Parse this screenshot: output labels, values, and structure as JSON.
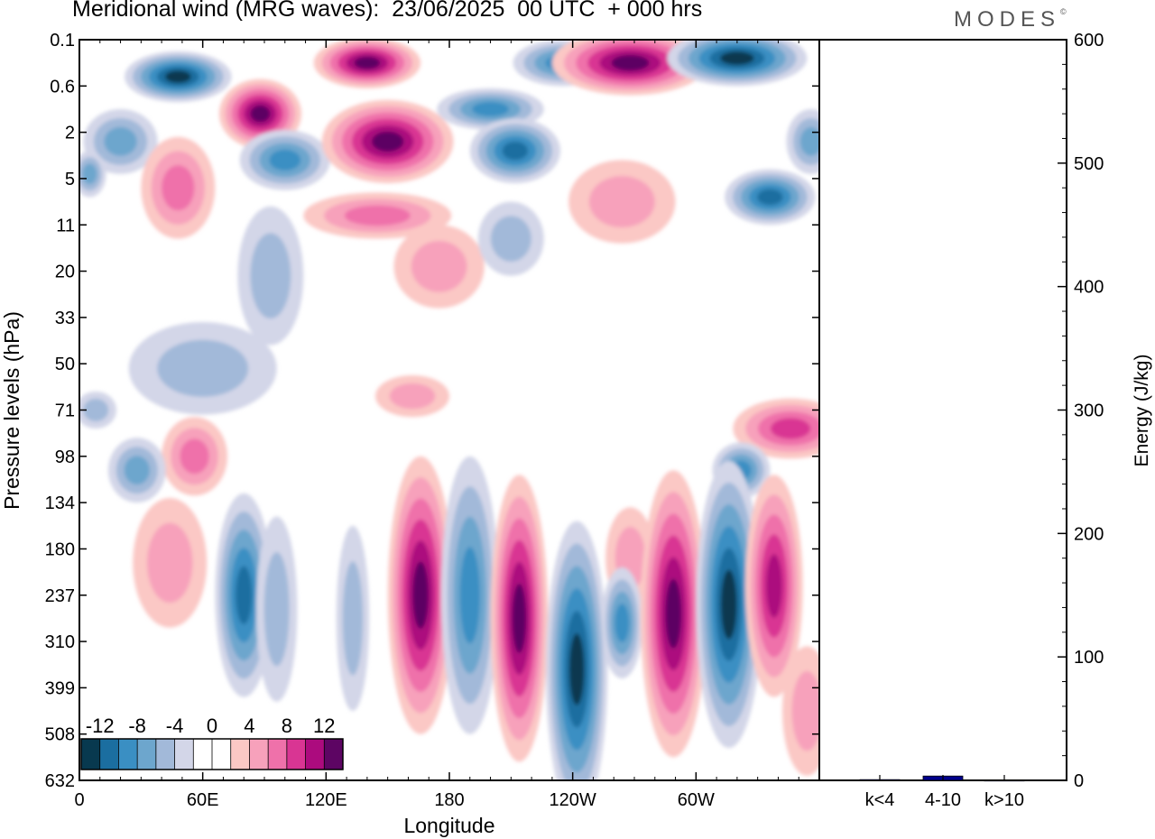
{
  "chart_data": [
    {
      "type": "heatmap",
      "title": "Meridional wind (MRG waves):  23/06/2025  00 UTC  + 000 hrs",
      "xlabel": "Longitude",
      "ylabel": "Pressure levels (hPa)",
      "x_ticks": [
        "0",
        "60E",
        "120E",
        "180",
        "120W",
        "60W"
      ],
      "x_range": [
        0,
        360
      ],
      "y_ticks": [
        "0.1",
        "0.6",
        "2",
        "5",
        "11",
        "20",
        "33",
        "50",
        "71",
        "98",
        "134",
        "180",
        "237",
        "310",
        "399",
        "508",
        "632"
      ],
      "colorbar": {
        "labels": [
          "-12",
          "-8",
          "-4",
          "0",
          "4",
          "8",
          "12"
        ],
        "colors": [
          "#08394f",
          "#1b6ea0",
          "#3a8fc3",
          "#6da6cd",
          "#a2b9d9",
          "#d3d6e8",
          "#ffffff",
          "#ffffff",
          "#fbc8c5",
          "#f7a1bb",
          "#ef71aa",
          "#d93593",
          "#ac0b7e",
          "#5d0563"
        ]
      },
      "anomalies": [
        {
          "lon": 48,
          "lev": 0.8,
          "v": -12,
          "rx": 26,
          "ry": 0.55
        },
        {
          "lon": 20,
          "lev": 2.2,
          "v": -5,
          "rx": 18,
          "ry": 0.7
        },
        {
          "lon": 5,
          "lev": 2.9,
          "v": -5,
          "rx": 8,
          "ry": 0.5
        },
        {
          "lon": 88,
          "lev": 1.6,
          "v": 12,
          "rx": 20,
          "ry": 0.75
        },
        {
          "lon": 48,
          "lev": 3.2,
          "v": 5,
          "rx": 18,
          "ry": 1.1
        },
        {
          "lon": 100,
          "lev": 2.6,
          "v": -8,
          "rx": 22,
          "ry": 0.65
        },
        {
          "lon": 140,
          "lev": 0.5,
          "v": 12,
          "rx": 26,
          "ry": 0.55
        },
        {
          "lon": 150,
          "lev": 2.2,
          "v": 14,
          "rx": 32,
          "ry": 0.9
        },
        {
          "lon": 200,
          "lev": 1.5,
          "v": -8,
          "rx": 26,
          "ry": 0.45
        },
        {
          "lon": 212,
          "lev": 2.4,
          "v": -10,
          "rx": 22,
          "ry": 0.7
        },
        {
          "lon": 235,
          "lev": 0.5,
          "v": -8,
          "rx": 24,
          "ry": 0.5
        },
        {
          "lon": 268,
          "lev": 0.5,
          "v": 16,
          "rx": 38,
          "ry": 0.7
        },
        {
          "lon": 320,
          "lev": 0.4,
          "v": -12,
          "rx": 34,
          "ry": 0.6
        },
        {
          "lon": 356,
          "lev": 2.2,
          "v": -6,
          "rx": 12,
          "ry": 0.7
        },
        {
          "lon": 336,
          "lev": 3.4,
          "v": -10,
          "rx": 22,
          "ry": 0.6
        },
        {
          "lon": 264,
          "lev": 3.5,
          "v": 4,
          "rx": 26,
          "ry": 0.9
        },
        {
          "lon": 145,
          "lev": 3.8,
          "v": 5,
          "rx": 36,
          "ry": 0.5
        },
        {
          "lon": 175,
          "lev": 4.9,
          "v": 3,
          "rx": 22,
          "ry": 0.9
        },
        {
          "lon": 210,
          "lev": 4.3,
          "v": -3,
          "rx": 16,
          "ry": 0.8
        },
        {
          "lon": 93,
          "lev": 5.1,
          "v": -3,
          "rx": 16,
          "ry": 1.5
        },
        {
          "lon": 60,
          "lev": 7.1,
          "v": -3,
          "rx": 36,
          "ry": 1.0
        },
        {
          "lon": 162,
          "lev": 7.7,
          "v": 3,
          "rx": 18,
          "ry": 0.45
        },
        {
          "lon": 346,
          "lev": 8.4,
          "v": 8,
          "rx": 28,
          "ry": 0.65
        },
        {
          "lon": 322,
          "lev": 9.3,
          "v": -8,
          "rx": 14,
          "ry": 0.6
        },
        {
          "lon": 56,
          "lev": 9.0,
          "v": 5,
          "rx": 16,
          "ry": 0.85
        },
        {
          "lon": 28,
          "lev": 9.3,
          "v": -5,
          "rx": 14,
          "ry": 0.7
        },
        {
          "lon": 8,
          "lev": 8.0,
          "v": -3,
          "rx": 10,
          "ry": 0.4
        },
        {
          "lon": 44,
          "lev": 11.3,
          "v": 4,
          "rx": 18,
          "ry": 1.4
        },
        {
          "lon": 80,
          "lev": 12.0,
          "v": -10,
          "rx": 14,
          "ry": 2.2
        },
        {
          "lon": 96,
          "lev": 12.3,
          "v": -4,
          "rx": 10,
          "ry": 2.0
        },
        {
          "lon": 133,
          "lev": 12.5,
          "v": -3,
          "rx": 8,
          "ry": 2.0
        },
        {
          "lon": 166,
          "lev": 12.0,
          "v": 12,
          "rx": 16,
          "ry": 3.0
        },
        {
          "lon": 190,
          "lev": 12.0,
          "v": -7,
          "rx": 14,
          "ry": 3.0
        },
        {
          "lon": 214,
          "lev": 12.5,
          "v": 17,
          "rx": 14,
          "ry": 3.1
        },
        {
          "lon": 242,
          "lev": 13.6,
          "v": -12,
          "rx": 15,
          "ry": 3.2
        },
        {
          "lon": 268,
          "lev": 11.2,
          "v": 4,
          "rx": 12,
          "ry": 1.1
        },
        {
          "lon": 264,
          "lev": 12.6,
          "v": -7,
          "rx": 10,
          "ry": 1.2
        },
        {
          "lon": 289,
          "lev": 12.4,
          "v": 15,
          "rx": 16,
          "ry": 3.1
        },
        {
          "lon": 316,
          "lev": 12.2,
          "v": -14,
          "rx": 16,
          "ry": 3.1
        },
        {
          "lon": 338,
          "lev": 11.8,
          "v": 9,
          "rx": 14,
          "ry": 2.4
        },
        {
          "lon": 354,
          "lev": 14.5,
          "v": 3,
          "rx": 12,
          "ry": 1.4
        }
      ]
    },
    {
      "type": "bar",
      "ylabel": "Energy (J/kg)",
      "categories": [
        "k<4",
        "4-10",
        "k>10"
      ],
      "values": [
        0.6,
        3.5,
        0.2
      ],
      "ylim": [
        0,
        600
      ],
      "y_ticks": [
        0,
        100,
        200,
        300,
        400,
        500,
        600
      ],
      "bar_color": "#00008b"
    }
  ],
  "brand": {
    "name": "MODES",
    "mark": "©"
  }
}
